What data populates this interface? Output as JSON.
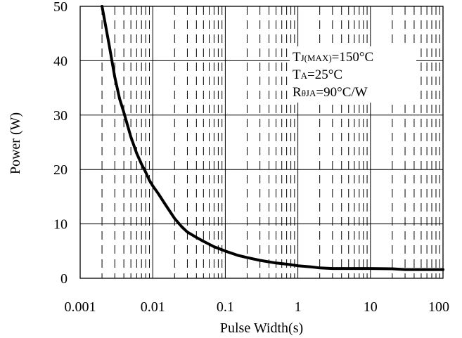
{
  "chart_data": {
    "type": "line",
    "title": "",
    "xlabel": "Pulse Width(s)",
    "ylabel": "Power (W)",
    "x_scale": "log",
    "xlim": [
      0.001,
      100
    ],
    "ylim": [
      0,
      50
    ],
    "grid": true,
    "x_ticks": [
      "0.001",
      "0.01",
      "0.1",
      "1",
      "10",
      "100"
    ],
    "y_ticks": [
      "0",
      "10",
      "20",
      "30",
      "40",
      "50"
    ],
    "annotations": [
      {
        "main": "T",
        "sub": "J(MAX)",
        "rest": "=150°C"
      },
      {
        "main": "T",
        "sub": "A",
        "rest": "=25°C"
      },
      {
        "main": "R",
        "sub": "θJA",
        "rest": "=90°C/W"
      }
    ],
    "series": [
      {
        "x": [
          0.002,
          0.0025,
          0.003,
          0.0035,
          0.004,
          0.005,
          0.006,
          0.007,
          0.008,
          0.009,
          0.01,
          0.012,
          0.015,
          0.02,
          0.025,
          0.03,
          0.04,
          0.05,
          0.07,
          0.1,
          0.15,
          0.2,
          0.3,
          0.5,
          0.7,
          1,
          1.5,
          2,
          3,
          5,
          10,
          20,
          30,
          50,
          100
        ],
        "y": [
          50,
          43,
          37,
          33,
          30.5,
          26,
          23,
          21,
          19.5,
          18,
          17,
          15.5,
          13.5,
          11,
          9.5,
          8.5,
          7.5,
          6.8,
          5.8,
          5,
          4.2,
          3.8,
          3.3,
          2.8,
          2.6,
          2.3,
          2.1,
          1.9,
          1.8,
          1.8,
          1.8,
          1.75,
          1.6,
          1.6,
          1.6
        ]
      }
    ],
    "colors": {
      "line": "#000000",
      "grid": "#000000",
      "frame": "#000000"
    }
  }
}
